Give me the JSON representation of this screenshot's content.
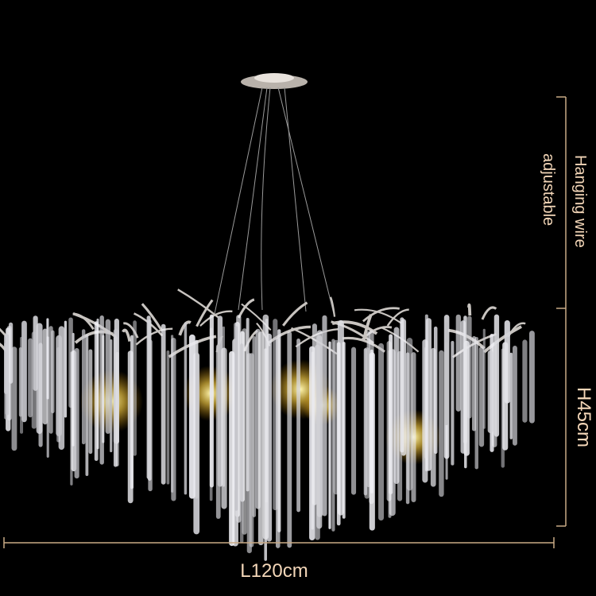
{
  "annotations": {
    "wire": [
      "Hanging wire",
      "adjustable"
    ],
    "height": "H45cm",
    "length": "L120cm"
  }
}
